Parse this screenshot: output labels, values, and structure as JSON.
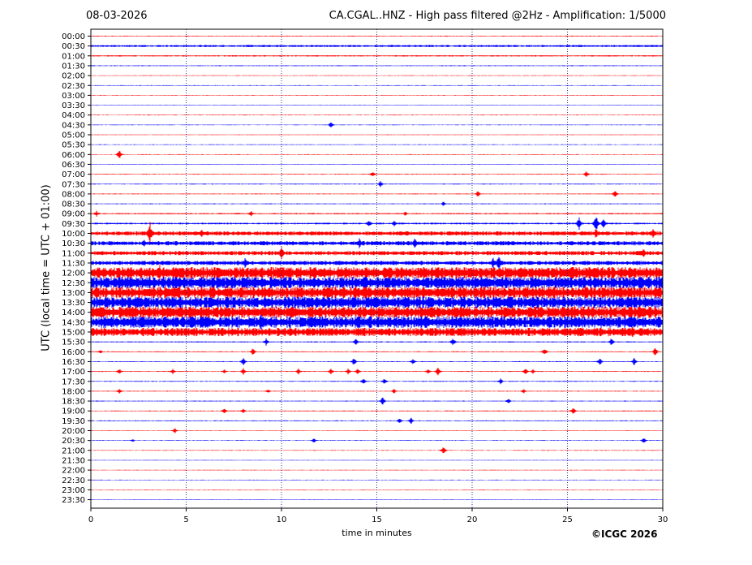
{
  "header": {
    "date": "08-03-2026",
    "title": "CA.CGAL..HNZ - High pass filtered @2Hz - Amplification: 1/5000"
  },
  "copyright": "©ICGC 2026",
  "colors": {
    "even_row": "#ff0000",
    "odd_row": "#0000ff",
    "grid": "#000080"
  },
  "chart_data": {
    "type": "line",
    "title": "CA.CGAL..HNZ - High pass filtered @2Hz - Amplification: 1/5000",
    "xlabel": "time in minutes",
    "ylabel": "UTC (local time = UTC + 01:00)",
    "xlim": [
      0,
      30
    ],
    "x_ticks": [
      0,
      5,
      10,
      15,
      20,
      25,
      30
    ],
    "grid": "vertical dotted at every 5 minutes",
    "rows": [
      "00:00",
      "00:30",
      "01:00",
      "01:30",
      "02:00",
      "02:30",
      "03:00",
      "03:30",
      "04:00",
      "04:30",
      "05:00",
      "05:30",
      "06:00",
      "06:30",
      "07:00",
      "07:30",
      "08:00",
      "08:30",
      "09:00",
      "09:30",
      "10:00",
      "10:30",
      "11:00",
      "11:30",
      "12:00",
      "12:30",
      "13:00",
      "13:30",
      "14:00",
      "14:30",
      "15:00",
      "15:30",
      "16:00",
      "16:30",
      "17:00",
      "17:30",
      "18:00",
      "18:30",
      "19:00",
      "19:30",
      "20:00",
      "20:30",
      "21:00",
      "21:30",
      "22:00",
      "22:30",
      "23:00",
      "23:30"
    ],
    "noise_level": [
      0.4,
      1.0,
      0.6,
      0.4,
      0.3,
      0.3,
      0.3,
      0.3,
      0.3,
      0.3,
      0.3,
      0.3,
      0.3,
      0.3,
      0.4,
      0.4,
      0.4,
      0.4,
      0.6,
      0.8,
      2.0,
      2.0,
      2.0,
      2.0,
      5.5,
      5.5,
      5.5,
      5.5,
      5.5,
      5.5,
      4.0,
      0.5,
      0.4,
      0.4,
      0.4,
      0.4,
      0.4,
      0.4,
      0.4,
      0.4,
      0.3,
      0.3,
      0.3,
      0.3,
      0.3,
      0.3,
      0.3,
      0.3
    ],
    "events": [
      {
        "row": 9,
        "minute": 12.6,
        "amp": 4
      },
      {
        "row": 12,
        "minute": 1.5,
        "amp": 6
      },
      {
        "row": 14,
        "minute": 14.8,
        "amp": 4
      },
      {
        "row": 14,
        "minute": 26.0,
        "amp": 4
      },
      {
        "row": 15,
        "minute": 15.2,
        "amp": 4
      },
      {
        "row": 16,
        "minute": 20.3,
        "amp": 4
      },
      {
        "row": 16,
        "minute": 27.5,
        "amp": 5
      },
      {
        "row": 17,
        "minute": 18.5,
        "amp": 3
      },
      {
        "row": 18,
        "minute": 0.3,
        "amp": 4
      },
      {
        "row": 18,
        "minute": 8.4,
        "amp": 4
      },
      {
        "row": 18,
        "minute": 16.5,
        "amp": 3
      },
      {
        "row": 19,
        "minute": 14.6,
        "amp": 5
      },
      {
        "row": 19,
        "minute": 15.9,
        "amp": 4
      },
      {
        "row": 19,
        "minute": 25.6,
        "amp": 9
      },
      {
        "row": 19,
        "minute": 26.5,
        "amp": 11
      },
      {
        "row": 19,
        "minute": 26.9,
        "amp": 8
      },
      {
        "row": 20,
        "minute": 3.1,
        "amp": 14
      },
      {
        "row": 20,
        "minute": 5.8,
        "amp": 6
      },
      {
        "row": 20,
        "minute": 26.5,
        "amp": 7
      },
      {
        "row": 20,
        "minute": 29.5,
        "amp": 6
      },
      {
        "row": 21,
        "minute": 2.8,
        "amp": 6
      },
      {
        "row": 21,
        "minute": 14.1,
        "amp": 7
      },
      {
        "row": 21,
        "minute": 17.0,
        "amp": 7
      },
      {
        "row": 22,
        "minute": 10.0,
        "amp": 9
      },
      {
        "row": 22,
        "minute": 29.0,
        "amp": 8
      },
      {
        "row": 23,
        "minute": 8.1,
        "amp": 7
      },
      {
        "row": 23,
        "minute": 21.1,
        "amp": 8
      },
      {
        "row": 23,
        "minute": 21.4,
        "amp": 12
      },
      {
        "row": 24,
        "minute": 3.6,
        "amp": 14
      },
      {
        "row": 24,
        "minute": 7.6,
        "amp": 9
      },
      {
        "row": 24,
        "minute": 9.9,
        "amp": 8
      },
      {
        "row": 25,
        "minute": 11.7,
        "amp": 6
      },
      {
        "row": 26,
        "minute": 17.1,
        "amp": 5
      },
      {
        "row": 27,
        "minute": 11.1,
        "amp": 8
      },
      {
        "row": 29,
        "minute": 5.8,
        "amp": 11
      },
      {
        "row": 29,
        "minute": 8.9,
        "amp": 14
      },
      {
        "row": 30,
        "minute": 19.6,
        "amp": 6
      },
      {
        "row": 30,
        "minute": 28.4,
        "amp": 8
      },
      {
        "row": 31,
        "minute": 9.2,
        "amp": 5
      },
      {
        "row": 31,
        "minute": 13.9,
        "amp": 5
      },
      {
        "row": 31,
        "minute": 19.0,
        "amp": 5
      },
      {
        "row": 31,
        "minute": 27.3,
        "amp": 5
      },
      {
        "row": 32,
        "minute": 0.5,
        "amp": 3
      },
      {
        "row": 32,
        "minute": 8.5,
        "amp": 5
      },
      {
        "row": 32,
        "minute": 23.8,
        "amp": 5
      },
      {
        "row": 32,
        "minute": 29.6,
        "amp": 6
      },
      {
        "row": 33,
        "minute": 8.0,
        "amp": 5
      },
      {
        "row": 33,
        "minute": 13.8,
        "amp": 5
      },
      {
        "row": 33,
        "minute": 16.9,
        "amp": 4
      },
      {
        "row": 33,
        "minute": 26.7,
        "amp": 5
      },
      {
        "row": 33,
        "minute": 28.5,
        "amp": 5
      },
      {
        "row": 34,
        "minute": 1.5,
        "amp": 4
      },
      {
        "row": 34,
        "minute": 4.3,
        "amp": 4
      },
      {
        "row": 34,
        "minute": 7.0,
        "amp": 3
      },
      {
        "row": 34,
        "minute": 8.0,
        "amp": 4
      },
      {
        "row": 34,
        "minute": 10.9,
        "amp": 4
      },
      {
        "row": 34,
        "minute": 12.6,
        "amp": 4
      },
      {
        "row": 34,
        "minute": 13.5,
        "amp": 4
      },
      {
        "row": 34,
        "minute": 14.0,
        "amp": 4
      },
      {
        "row": 34,
        "minute": 17.7,
        "amp": 4
      },
      {
        "row": 34,
        "minute": 18.2,
        "amp": 6
      },
      {
        "row": 34,
        "minute": 22.8,
        "amp": 4
      },
      {
        "row": 34,
        "minute": 23.2,
        "amp": 3
      },
      {
        "row": 35,
        "minute": 14.3,
        "amp": 4
      },
      {
        "row": 35,
        "minute": 15.4,
        "amp": 4
      },
      {
        "row": 35,
        "minute": 21.5,
        "amp": 4
      },
      {
        "row": 36,
        "minute": 1.5,
        "amp": 4
      },
      {
        "row": 36,
        "minute": 9.3,
        "amp": 3
      },
      {
        "row": 36,
        "minute": 15.9,
        "amp": 3
      },
      {
        "row": 36,
        "minute": 22.7,
        "amp": 3
      },
      {
        "row": 37,
        "minute": 15.3,
        "amp": 5
      },
      {
        "row": 37,
        "minute": 21.9,
        "amp": 4
      },
      {
        "row": 38,
        "minute": 7.0,
        "amp": 4
      },
      {
        "row": 38,
        "minute": 8.0,
        "amp": 3
      },
      {
        "row": 38,
        "minute": 25.3,
        "amp": 5
      },
      {
        "row": 39,
        "minute": 16.2,
        "amp": 4
      },
      {
        "row": 39,
        "minute": 16.8,
        "amp": 4
      },
      {
        "row": 40,
        "minute": 4.4,
        "amp": 4
      },
      {
        "row": 41,
        "minute": 2.2,
        "amp": 2
      },
      {
        "row": 41,
        "minute": 11.7,
        "amp": 3
      },
      {
        "row": 41,
        "minute": 29.0,
        "amp": 4
      },
      {
        "row": 42,
        "minute": 18.5,
        "amp": 5
      }
    ]
  }
}
